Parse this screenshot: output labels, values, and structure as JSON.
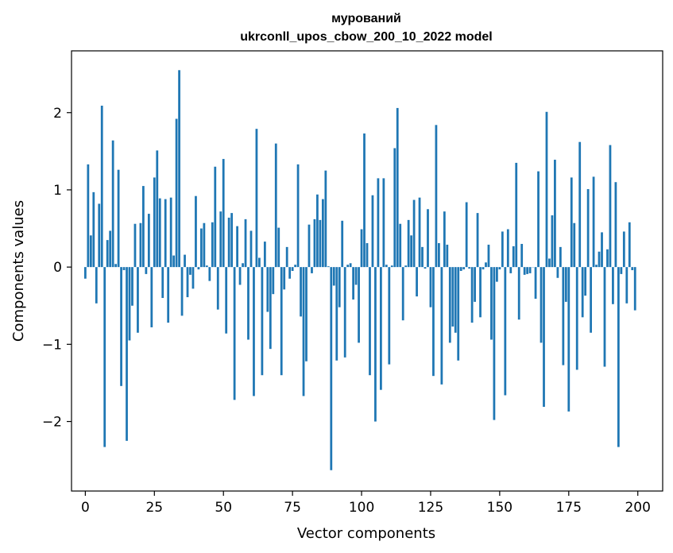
{
  "chart_data": {
    "type": "bar",
    "title": "мурований",
    "subtitle": "ukrconll_upos_cbow_200_10_2022 model",
    "xlabel": "Vector components",
    "ylabel": "Components values",
    "xlim": [
      -5,
      209
    ],
    "ylim": [
      -2.9,
      2.8
    ],
    "xticks": [
      0,
      25,
      50,
      75,
      100,
      125,
      150,
      175,
      200
    ],
    "xtick_labels": [
      "0",
      "25",
      "50",
      "75",
      "100",
      "125",
      "150",
      "175",
      "200"
    ],
    "yticks": [
      -2,
      -1,
      0,
      1,
      2
    ],
    "ytick_labels": [
      "−2",
      "−1",
      "0",
      "1",
      "2"
    ],
    "grid": false,
    "bar_color": "#1f77b4",
    "x": [
      0,
      1,
      2,
      3,
      4,
      5,
      6,
      7,
      8,
      9,
      10,
      11,
      12,
      13,
      14,
      15,
      16,
      17,
      18,
      19,
      20,
      21,
      22,
      23,
      24,
      25,
      26,
      27,
      28,
      29,
      30,
      31,
      32,
      33,
      34,
      35,
      36,
      37,
      38,
      39,
      40,
      41,
      42,
      43,
      44,
      45,
      46,
      47,
      48,
      49,
      50,
      51,
      52,
      53,
      54,
      55,
      56,
      57,
      58,
      59,
      60,
      61,
      62,
      63,
      64,
      65,
      66,
      67,
      68,
      69,
      70,
      71,
      72,
      73,
      74,
      75,
      76,
      77,
      78,
      79,
      80,
      81,
      82,
      83,
      84,
      85,
      86,
      87,
      88,
      89,
      90,
      91,
      92,
      93,
      94,
      95,
      96,
      97,
      98,
      99,
      100,
      101,
      102,
      103,
      104,
      105,
      106,
      107,
      108,
      109,
      110,
      111,
      112,
      113,
      114,
      115,
      116,
      117,
      118,
      119,
      120,
      121,
      122,
      123,
      124,
      125,
      126,
      127,
      128,
      129,
      130,
      131,
      132,
      133,
      134,
      135,
      136,
      137,
      138,
      139,
      140,
      141,
      142,
      143,
      144,
      145,
      146,
      147,
      148,
      149,
      150,
      151,
      152,
      153,
      154,
      155,
      156,
      157,
      158,
      159,
      160,
      161,
      162,
      163,
      164,
      165,
      166,
      167,
      168,
      169,
      170,
      171,
      172,
      173,
      174,
      175,
      176,
      177,
      178,
      179,
      180,
      181,
      182,
      183,
      184,
      185,
      186,
      187,
      188,
      189,
      190,
      191,
      192,
      193,
      194,
      195,
      196,
      197,
      198,
      199
    ],
    "values": [
      -0.15,
      1.33,
      0.41,
      0.97,
      -0.47,
      0.82,
      2.09,
      -2.33,
      0.35,
      0.47,
      1.64,
      0.04,
      1.26,
      -1.54,
      -0.04,
      -2.25,
      -0.95,
      -0.5,
      0.56,
      -0.85,
      0.57,
      1.05,
      -0.09,
      0.69,
      -0.78,
      1.16,
      1.51,
      0.89,
      -0.4,
      0.88,
      -0.72,
      0.9,
      0.15,
      1.92,
      2.55,
      -0.63,
      0.16,
      -0.39,
      -0.1,
      -0.28,
      0.92,
      -0.03,
      0.5,
      0.57,
      0.02,
      -0.18,
      0.58,
      1.3,
      -0.55,
      0.72,
      1.4,
      -0.86,
      0.64,
      0.7,
      -1.72,
      0.53,
      -0.23,
      0.05,
      0.62,
      -0.94,
      0.47,
      -1.67,
      1.79,
      0.12,
      -1.4,
      0.33,
      -0.58,
      -1.06,
      -0.35,
      1.6,
      0.51,
      -1.4,
      -0.29,
      0.26,
      -0.15,
      -0.05,
      0.03,
      1.33,
      -0.64,
      -1.67,
      -1.22,
      0.55,
      -0.08,
      0.62,
      0.94,
      0.61,
      0.88,
      1.25,
      0.01,
      -2.63,
      -0.24,
      -1.21,
      -0.52,
      0.6,
      -1.17,
      0.03,
      0.05,
      -0.42,
      -0.23,
      -0.98,
      0.49,
      1.73,
      0.31,
      -1.4,
      0.93,
      -2.0,
      1.15,
      -1.59,
      1.15,
      0.03,
      -1.26,
      0.02,
      1.54,
      2.06,
      0.56,
      -0.69,
      0.02,
      0.61,
      0.41,
      0.87,
      -0.38,
      0.9,
      0.26,
      -0.02,
      0.75,
      -0.52,
      -1.41,
      1.84,
      0.31,
      -1.52,
      0.72,
      0.29,
      -0.98,
      -0.77,
      -0.85,
      -1.21,
      -0.05,
      -0.03,
      0.84,
      -0.02,
      -0.72,
      -0.45,
      0.7,
      -0.65,
      -0.03,
      0.06,
      0.29,
      -0.94,
      -1.98,
      -0.19,
      -0.03,
      0.46,
      -1.66,
      0.49,
      -0.08,
      0.27,
      1.35,
      -0.68,
      0.3,
      -0.1,
      -0.09,
      -0.08,
      0.0,
      -0.41,
      1.24,
      -0.98,
      -1.81,
      2.01,
      0.11,
      0.67,
      1.39,
      -0.14,
      0.26,
      -1.27,
      -0.45,
      -1.87,
      1.16,
      0.57,
      -1.33,
      1.62,
      -0.65,
      -0.37,
      1.01,
      -0.85,
      1.17,
      0.03,
      0.2,
      0.45,
      -1.29,
      0.23,
      1.58,
      -0.48,
      1.1,
      -2.33,
      -0.09,
      0.46,
      -0.47,
      0.58,
      -0.04,
      -0.56
    ]
  }
}
